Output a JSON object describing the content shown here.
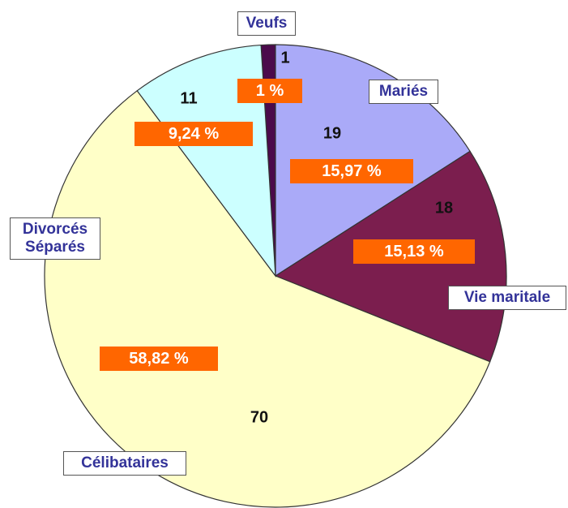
{
  "chart_data": {
    "type": "pie",
    "categories": [
      "Veufs",
      "Mariés",
      "Vie maritale",
      "Célibataires",
      "Divorcés Séparés"
    ],
    "values": [
      1,
      15.97,
      15.13,
      58.82,
      9.24
    ],
    "value_labels": [
      "1 %",
      "15,97 %",
      "15,13 %",
      "58,82 %",
      "9,24 %"
    ],
    "counts": [
      1,
      19,
      18,
      70,
      11
    ],
    "colors": [
      "#4b0a4b",
      "#aaaaf8",
      "#7b1e4e",
      "#ffffc8",
      "#ccffff"
    ]
  }
}
